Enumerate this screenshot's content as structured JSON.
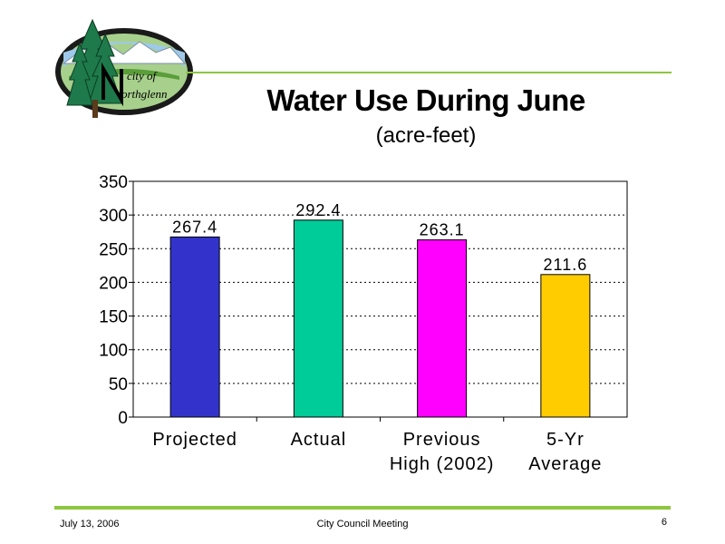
{
  "logo": {
    "line1": "city of",
    "line2": "orthglenn"
  },
  "header": {
    "title": "Water Use During June",
    "subtitle": "(acre-feet)"
  },
  "chart_data": {
    "type": "bar",
    "categories": [
      {
        "lines": [
          "Projected"
        ]
      },
      {
        "lines": [
          "Actual"
        ]
      },
      {
        "lines": [
          "Previous",
          "High (2002)"
        ]
      },
      {
        "lines": [
          "5-Yr",
          "Average"
        ]
      }
    ],
    "values": [
      267.4,
      292.4,
      263.1,
      211.6
    ],
    "value_labels": [
      "267.4",
      "292.4",
      "263.1",
      "211.6"
    ],
    "colors": [
      "#3333cc",
      "#00cc99",
      "#ff00ff",
      "#ffcc00"
    ],
    "ylim": [
      0,
      350
    ],
    "yticks": [
      0,
      50,
      100,
      150,
      200,
      250,
      300,
      350
    ],
    "grid": true,
    "legend": "none"
  },
  "footer": {
    "date": "July 13, 2006",
    "center": "City Council Meeting",
    "page": "6"
  }
}
